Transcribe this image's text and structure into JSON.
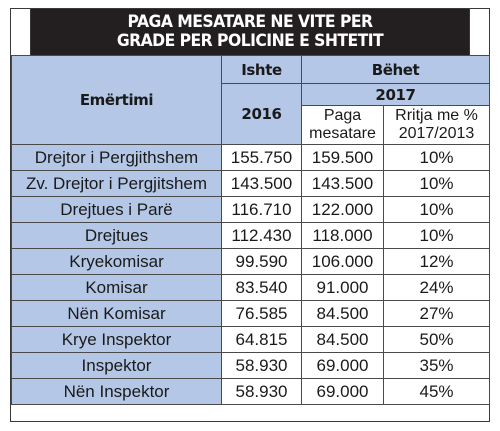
{
  "title": {
    "line1": "PAGA MESATARE NE VITE PER",
    "line2": "GRADE PER POLICINE E SHTETIT"
  },
  "header": {
    "name_col": "Emërtimi",
    "ishte": "Ishte",
    "behet": "Bëhet",
    "year_ishte": "2016",
    "year_behet": "2017",
    "paga_line1": "Paga",
    "paga_line2": "mesatare",
    "rritja_line1": "Rritja me %",
    "rritja_line2": "2017/2013"
  },
  "rows": [
    {
      "name": "Drejtor i Pergjithshem",
      "v2016": "155.750",
      "v2017": "159.500",
      "growth": "10%"
    },
    {
      "name": "Zv. Drejtor i Pergjitshem",
      "v2016": "143.500",
      "v2017": "143.500",
      "growth": "10%"
    },
    {
      "name": "Drejtues i Parë",
      "v2016": "116.710",
      "v2017": "122.000",
      "growth": "10%"
    },
    {
      "name": "Drejtues",
      "v2016": "112.430",
      "v2017": "118.000",
      "growth": "10%"
    },
    {
      "name": "Kryekomisar",
      "v2016": "99.590",
      "v2017": "106.000",
      "growth": "12%"
    },
    {
      "name": "Komisar",
      "v2016": "83.540",
      "v2017": "91.000",
      "growth": "24%"
    },
    {
      "name": "Nën Komisar",
      "v2016": "76.585",
      "v2017": "84.500",
      "growth": "27%"
    },
    {
      "name": "Krye Inspektor",
      "v2016": "64.815",
      "v2017": "84.500",
      "growth": "50%"
    },
    {
      "name": "Inspektor",
      "v2016": "58.930",
      "v2017": "69.000",
      "growth": "35%"
    },
    {
      "name": "Nën Inspektor",
      "v2016": "58.930",
      "v2017": "69.000",
      "growth": "45%"
    }
  ]
}
